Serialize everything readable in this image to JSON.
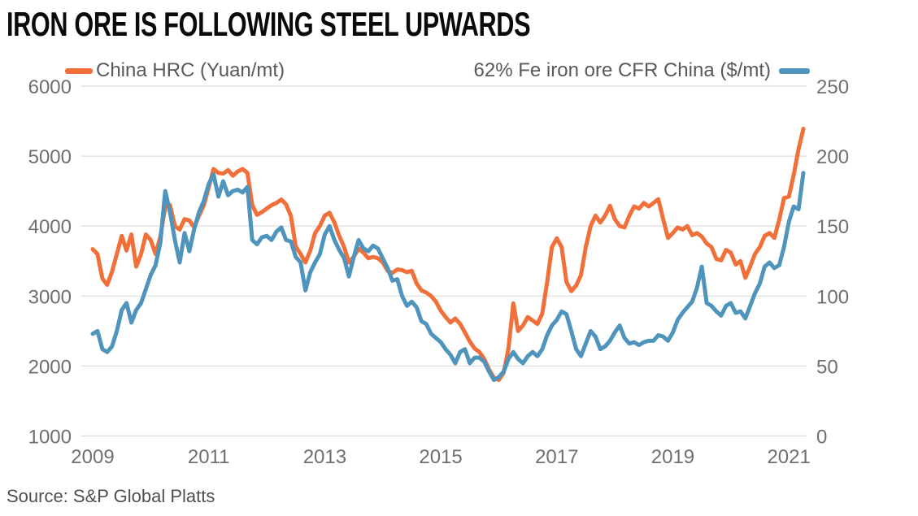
{
  "title": "IRON ORE IS FOLLOWING STEEL UPWARDS",
  "source": "Source: S&P Global Platts",
  "colors": {
    "hrc_orange": "#F1703A",
    "iron_ore_blue": "#4E94BC",
    "gridline": "#DCDCDC",
    "tick_text": "#6E6F71",
    "legend_text": "#58595B",
    "title_text": "#0A0A0A"
  },
  "chart_data": {
    "type": "line",
    "title": "IRON ORE IS FOLLOWING STEEL UPWARDS",
    "x_start": "2009-01",
    "x_end": "2021-04",
    "x_interval": "monthly",
    "x_tick_labels": [
      "2009",
      "2011",
      "2013",
      "2015",
      "2017",
      "2019",
      "2021"
    ],
    "x_tick_month_offsets": [
      0,
      24,
      48,
      72,
      96,
      120,
      144
    ],
    "grid": true,
    "legend_position": "top",
    "left_axis": {
      "label": "China HRC (Yuan/mt)",
      "range": [
        1000,
        6000
      ],
      "ticks": [
        6000,
        5000,
        4000,
        3000,
        2000,
        1000
      ]
    },
    "right_axis": {
      "label": "62% Fe iron ore CFR China ($/mt)",
      "range": [
        0,
        250
      ],
      "ticks": [
        250,
        200,
        150,
        100,
        50,
        0
      ]
    },
    "series": [
      {
        "name": "China HRC (Yuan/mt)",
        "axis": "left",
        "color": "#F1703A",
        "values": [
          3670,
          3600,
          3250,
          3160,
          3350,
          3600,
          3860,
          3650,
          3880,
          3420,
          3600,
          3880,
          3800,
          3600,
          3850,
          4270,
          4300,
          4000,
          3950,
          4100,
          4080,
          3980,
          4150,
          4300,
          4550,
          4815,
          4760,
          4750,
          4800,
          4720,
          4780,
          4815,
          4760,
          4300,
          4160,
          4200,
          4250,
          4300,
          4330,
          4380,
          4310,
          4140,
          3710,
          3600,
          3480,
          3650,
          3900,
          4000,
          4150,
          4190,
          4050,
          3860,
          3700,
          3480,
          3560,
          3680,
          3620,
          3540,
          3560,
          3540,
          3480,
          3360,
          3330,
          3380,
          3370,
          3340,
          3360,
          3180,
          3080,
          3050,
          3000,
          2920,
          2790,
          2700,
          2620,
          2680,
          2600,
          2480,
          2350,
          2250,
          2200,
          2100,
          1950,
          1830,
          1800,
          1900,
          2250,
          2895,
          2500,
          2580,
          2700,
          2650,
          2600,
          2750,
          3200,
          3700,
          3825,
          3700,
          3200,
          3070,
          3150,
          3300,
          3700,
          4000,
          4150,
          4050,
          4150,
          4290,
          4100,
          4000,
          3980,
          4150,
          4280,
          4250,
          4330,
          4280,
          4330,
          4385,
          4100,
          3830,
          3900,
          3980,
          3950,
          4000,
          3870,
          3900,
          3850,
          3750,
          3700,
          3530,
          3510,
          3660,
          3620,
          3450,
          3500,
          3260,
          3420,
          3600,
          3700,
          3860,
          3900,
          3830,
          4090,
          4400,
          4420,
          4730,
          5100,
          5390
        ]
      },
      {
        "name": "62% Fe iron ore CFR China ($/mt)",
        "axis": "right",
        "color": "#4E94BC",
        "values": [
          73,
          75,
          62,
          60,
          64,
          75,
          90,
          95,
          81,
          90,
          95,
          105,
          115,
          122,
          138,
          175,
          160,
          140,
          124,
          145,
          132,
          148,
          160,
          168,
          180,
          187,
          171,
          182,
          172,
          175,
          176,
          174,
          178,
          140,
          137,
          142,
          143,
          140,
          146,
          149,
          140,
          139,
          128,
          124,
          104,
          117,
          124,
          130,
          144,
          150,
          140,
          133,
          127,
          114,
          128,
          140,
          134,
          132,
          136,
          134,
          127,
          120,
          111,
          112,
          100,
          93,
          96,
          92,
          82,
          80,
          73,
          70,
          67,
          62,
          58,
          52,
          60,
          62,
          52,
          56,
          56,
          53,
          46,
          40,
          42,
          46,
          55,
          60,
          55,
          52,
          57,
          60,
          57,
          62,
          72,
          79,
          83,
          89,
          87,
          75,
          62,
          57,
          66,
          75,
          71,
          62,
          64,
          68,
          74,
          79,
          70,
          66,
          67,
          65,
          67,
          68,
          68,
          72,
          71,
          68,
          74,
          83,
          88,
          92,
          96,
          106,
          121,
          95,
          93,
          89,
          86,
          93,
          95,
          88,
          89,
          84,
          93,
          102,
          109,
          121,
          124,
          120,
          122,
          135,
          153,
          164,
          162,
          188
        ]
      }
    ]
  }
}
